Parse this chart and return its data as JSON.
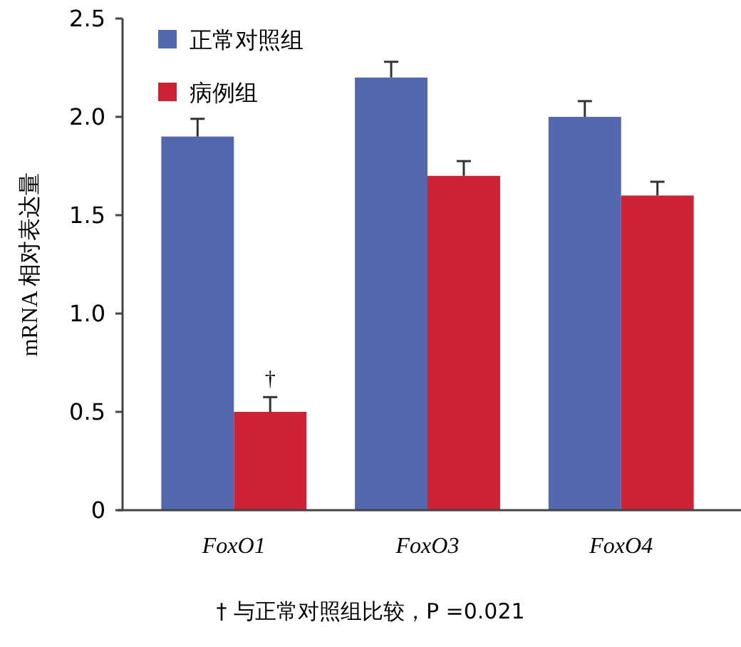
{
  "chart_data": {
    "type": "bar",
    "ylabel": "mRNA 相对表达量",
    "categories": [
      "FoxO1",
      "FoxO3",
      "FoxO4"
    ],
    "series": [
      {
        "name": "正常对照组",
        "color": "#5468b0",
        "values": [
          1.9,
          2.2,
          2.0
        ],
        "errors": [
          [
            1.9,
            1.99
          ],
          [
            2.2,
            2.28
          ],
          [
            2.0,
            2.08
          ]
        ]
      },
      {
        "name": "病例组",
        "color": "#cc2233",
        "values": [
          0.5,
          1.7,
          1.6
        ],
        "errors": [
          [
            0.5,
            0.575
          ],
          [
            1.7,
            1.775
          ],
          [
            1.6,
            1.67
          ]
        ]
      }
    ],
    "ylim": [
      0,
      2.5
    ],
    "yticks": [
      0,
      0.5,
      {
        "value": 1,
        "label": "1.0"
      },
      1.5,
      {
        "value": 2,
        "label": "2.0"
      },
      2.5
    ],
    "legend": "top left",
    "annotations": [
      {
        "text": "†",
        "x": "FoxO1",
        "y": 0.575
      },
      "† 与正常对照组比较，P =0.021"
    ]
  }
}
